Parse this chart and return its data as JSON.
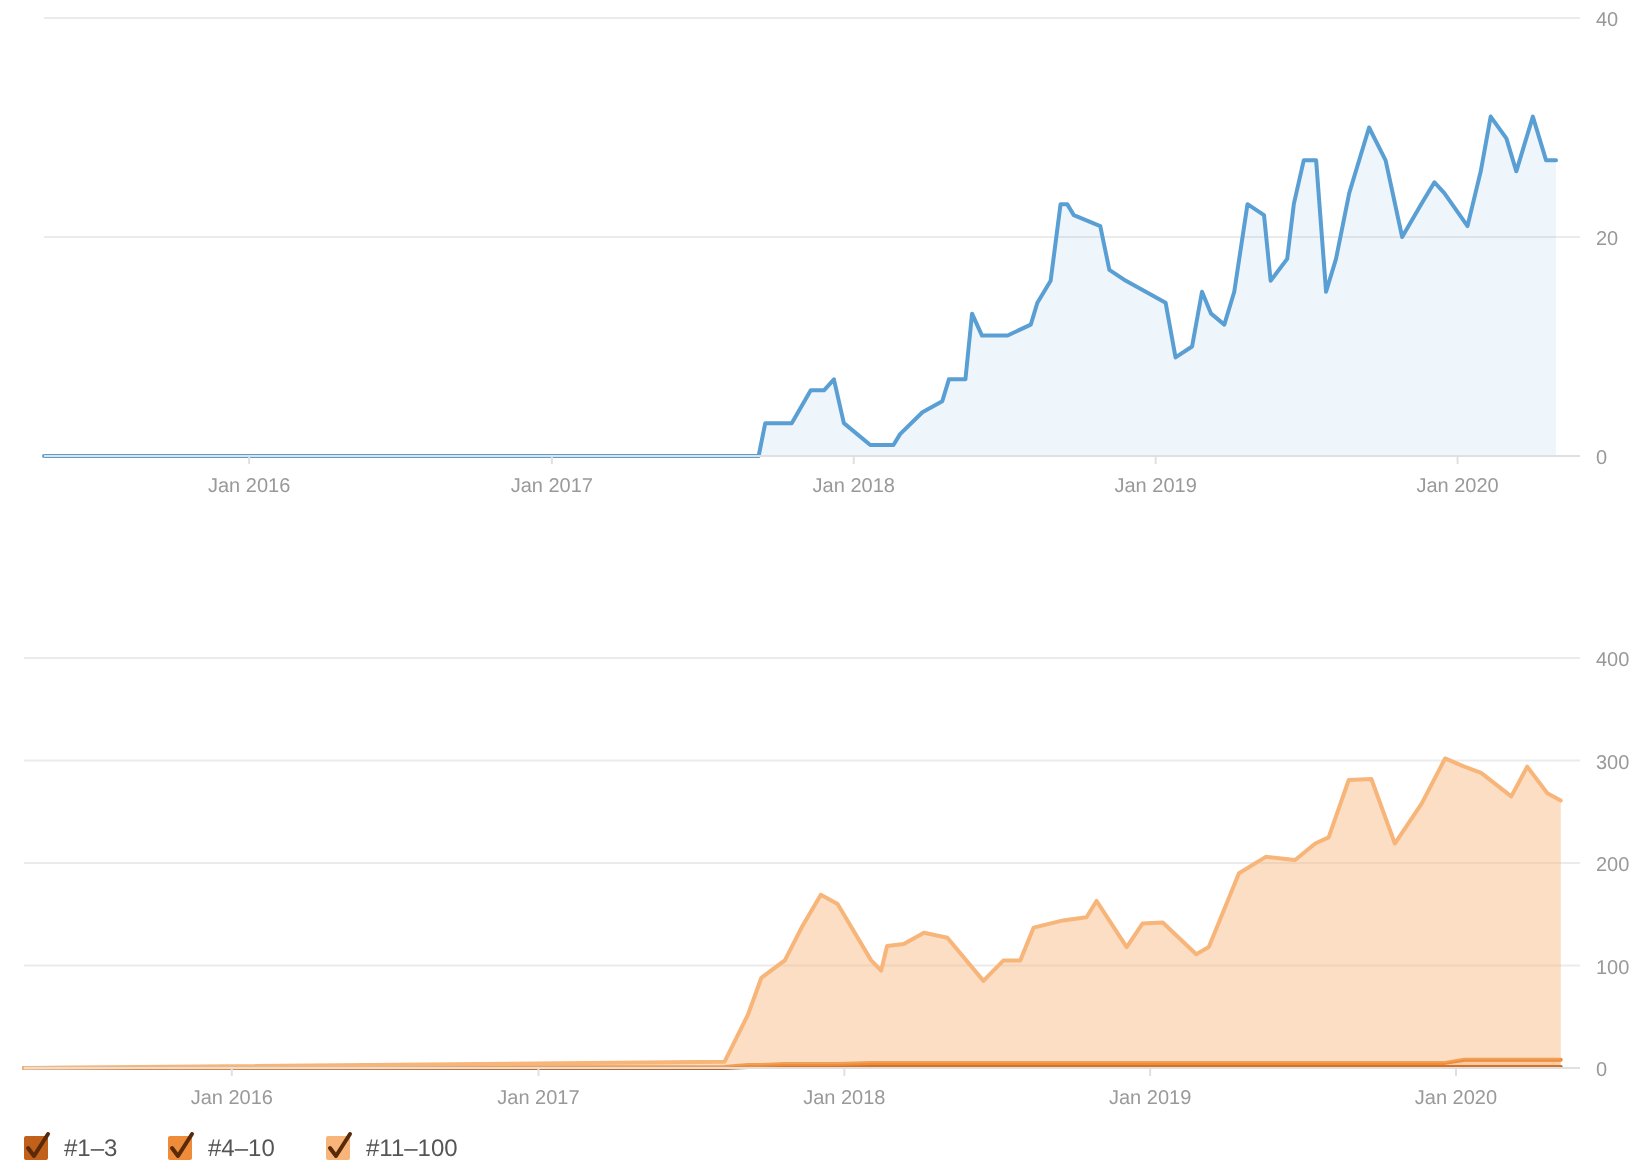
{
  "chart_data": [
    {
      "type": "area",
      "x": [
        "2015-04-28",
        "2017-09-08",
        "2017-09-16",
        "2017-10-18",
        "2017-11-10",
        "2017-11-26",
        "2017-12-08",
        "2017-12-20",
        "2018-01-21",
        "2018-02-18",
        "2018-02-26",
        "2018-03-25",
        "2018-04-18",
        "2018-04-26",
        "2018-05-16",
        "2018-05-24",
        "2018-06-05",
        "2018-07-06",
        "2018-08-03",
        "2018-08-11",
        "2018-08-27",
        "2018-09-08",
        "2018-09-16",
        "2018-09-24",
        "2018-10-26",
        "2018-11-06",
        "2018-11-26",
        "2018-12-20",
        "2019-01-13",
        "2019-01-25",
        "2019-02-14",
        "2019-02-26",
        "2019-03-09",
        "2019-03-25",
        "2019-04-06",
        "2019-04-22",
        "2019-05-12",
        "2019-05-20",
        "2019-06-09",
        "2019-06-17",
        "2019-06-29",
        "2019-07-14",
        "2019-07-26",
        "2019-08-07",
        "2019-08-23",
        "2019-09-16",
        "2019-10-06",
        "2019-10-26",
        "2019-11-18",
        "2019-12-04",
        "2019-12-16",
        "2020-01-13",
        "2020-01-29",
        "2020-02-10",
        "2020-02-29",
        "2020-03-12",
        "2020-04-01",
        "2020-04-17",
        "2020-04-29"
      ],
      "series": [
        {
          "color": "#5a9fd4",
          "values": [
            0,
            0,
            3,
            3,
            6,
            6,
            7,
            3,
            1,
            1,
            2,
            4,
            5,
            7,
            7,
            13,
            11,
            11,
            12,
            14,
            16,
            23,
            23,
            22,
            21,
            17,
            16,
            15,
            14,
            9,
            10,
            15,
            13,
            12,
            15,
            23,
            22,
            16,
            18,
            23,
            27,
            27,
            15,
            18,
            24,
            30,
            27,
            20,
            23,
            25,
            24,
            21,
            26,
            31,
            29,
            26,
            31,
            27,
            27
          ]
        }
      ],
      "xlim": [
        "2015-04-28",
        "2020-05-28"
      ],
      "ylim": [
        0,
        40
      ],
      "yticks": [
        0,
        20,
        40
      ],
      "xticks": [
        {
          "value": "2016-01-01",
          "label": "Jan 2016"
        },
        {
          "value": "2017-01-01",
          "label": "Jan 2017"
        },
        {
          "value": "2018-01-01",
          "label": "Jan 2018"
        },
        {
          "value": "2019-01-01",
          "label": "Jan 2019"
        },
        {
          "value": "2020-01-01",
          "label": "Jan 2020"
        }
      ],
      "grid": "y"
    },
    {
      "type": "area",
      "stacked": true,
      "legend": "bottom left",
      "x": [
        "2015-04-28",
        "2017-08-11",
        "2017-09-08",
        "2017-09-24",
        "2017-10-22",
        "2017-11-11",
        "2017-12-04",
        "2017-12-24",
        "2018-02-02",
        "2018-02-14",
        "2018-02-21",
        "2018-03-13",
        "2018-04-06",
        "2018-05-04",
        "2018-06-16",
        "2018-07-10",
        "2018-07-30",
        "2018-08-15",
        "2018-09-19",
        "2018-10-17",
        "2018-10-29",
        "2018-12-04",
        "2018-12-23",
        "2019-01-16",
        "2019-02-25",
        "2019-03-12",
        "2019-04-17",
        "2019-05-19",
        "2019-06-23",
        "2019-07-17",
        "2019-08-02",
        "2019-08-26",
        "2019-09-22",
        "2019-10-20",
        "2019-11-21",
        "2019-12-19",
        "2020-01-11",
        "2020-01-31",
        "2020-03-07",
        "2020-03-26",
        "2020-04-19",
        "2020-05-05"
      ],
      "series": [
        {
          "name": "#1–3",
          "color": "#c0601a",
          "values": [
            0,
            0,
            1,
            1,
            1,
            1,
            1,
            1,
            1,
            1,
            1,
            1,
            1,
            1,
            1,
            1,
            1,
            1,
            1,
            1,
            1,
            1,
            1,
            1,
            1,
            1,
            1,
            1,
            1,
            1,
            1,
            1,
            1,
            1,
            1,
            1,
            1,
            1,
            1,
            1,
            1,
            1
          ]
        },
        {
          "name": "#4–10",
          "color": "#ee8c3a",
          "values": [
            0,
            1,
            2,
            2,
            3,
            3,
            3,
            3,
            4,
            4,
            4,
            4,
            4,
            4,
            4,
            4,
            4,
            4,
            4,
            4,
            4,
            4,
            4,
            4,
            4,
            4,
            4,
            4,
            4,
            4,
            4,
            4,
            4,
            4,
            4,
            4,
            7,
            7,
            7,
            7,
            7,
            7
          ]
        },
        {
          "name": "#11–100",
          "color": "#f7b57a",
          "values": [
            0,
            5,
            49,
            85,
            101,
            133,
            165,
            156,
            100,
            90,
            114,
            116,
            127,
            122,
            80,
            100,
            100,
            132,
            139,
            142,
            158,
            113,
            136,
            137,
            106,
            113,
            185,
            201,
            198,
            214,
            220,
            276,
            277,
            214,
            253,
            297,
            286,
            280,
            257,
            286,
            260,
            253
          ]
        }
      ],
      "xlim": [
        "2015-04-28",
        "2020-05-28"
      ],
      "ylim": [
        0,
        400
      ],
      "yticks": [
        0,
        100,
        200,
        300,
        400
      ],
      "xticks": [
        {
          "value": "2016-01-01",
          "label": "Jan 2016"
        },
        {
          "value": "2017-01-01",
          "label": "Jan 2017"
        },
        {
          "value": "2018-01-01",
          "label": "Jan 2018"
        },
        {
          "value": "2019-01-01",
          "label": "Jan 2019"
        },
        {
          "value": "2020-01-01",
          "label": "Jan 2020"
        }
      ],
      "grid": "y"
    }
  ]
}
